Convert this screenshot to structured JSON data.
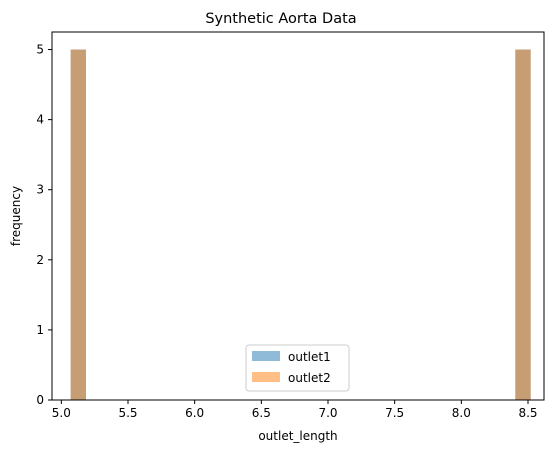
{
  "chart_data": {
    "type": "bar",
    "title": "Synthetic Aorta Data",
    "xlabel": "outlet_length",
    "ylabel": "frequency",
    "xlim": [
      4.93,
      8.62
    ],
    "ylim": [
      0,
      5.25
    ],
    "xticks": [
      5.0,
      5.5,
      6.0,
      6.5,
      7.0,
      7.5,
      8.0,
      8.5
    ],
    "xtick_labels": [
      "5.0",
      "5.5",
      "6.0",
      "6.5",
      "7.0",
      "7.5",
      "8.0",
      "8.5"
    ],
    "yticks": [
      0,
      1,
      2,
      3,
      4,
      5
    ],
    "ytick_labels": [
      "0",
      "1",
      "2",
      "3",
      "4",
      "5"
    ],
    "grid": false,
    "legend_position": "bottom-center",
    "bin_width": 0.115,
    "series": [
      {
        "name": "outlet1",
        "color": "#1f77b4",
        "alpha": 0.5,
        "bins": [
          {
            "x0": 5.07,
            "x1": 5.185,
            "value": 5
          },
          {
            "x0": 8.405,
            "x1": 8.52,
            "value": 5
          }
        ]
      },
      {
        "name": "outlet2",
        "color": "#ff7f0e",
        "alpha": 0.5,
        "bins": [
          {
            "x0": 5.07,
            "x1": 5.185,
            "value": 5
          },
          {
            "x0": 8.405,
            "x1": 8.52,
            "value": 5
          }
        ]
      }
    ]
  }
}
